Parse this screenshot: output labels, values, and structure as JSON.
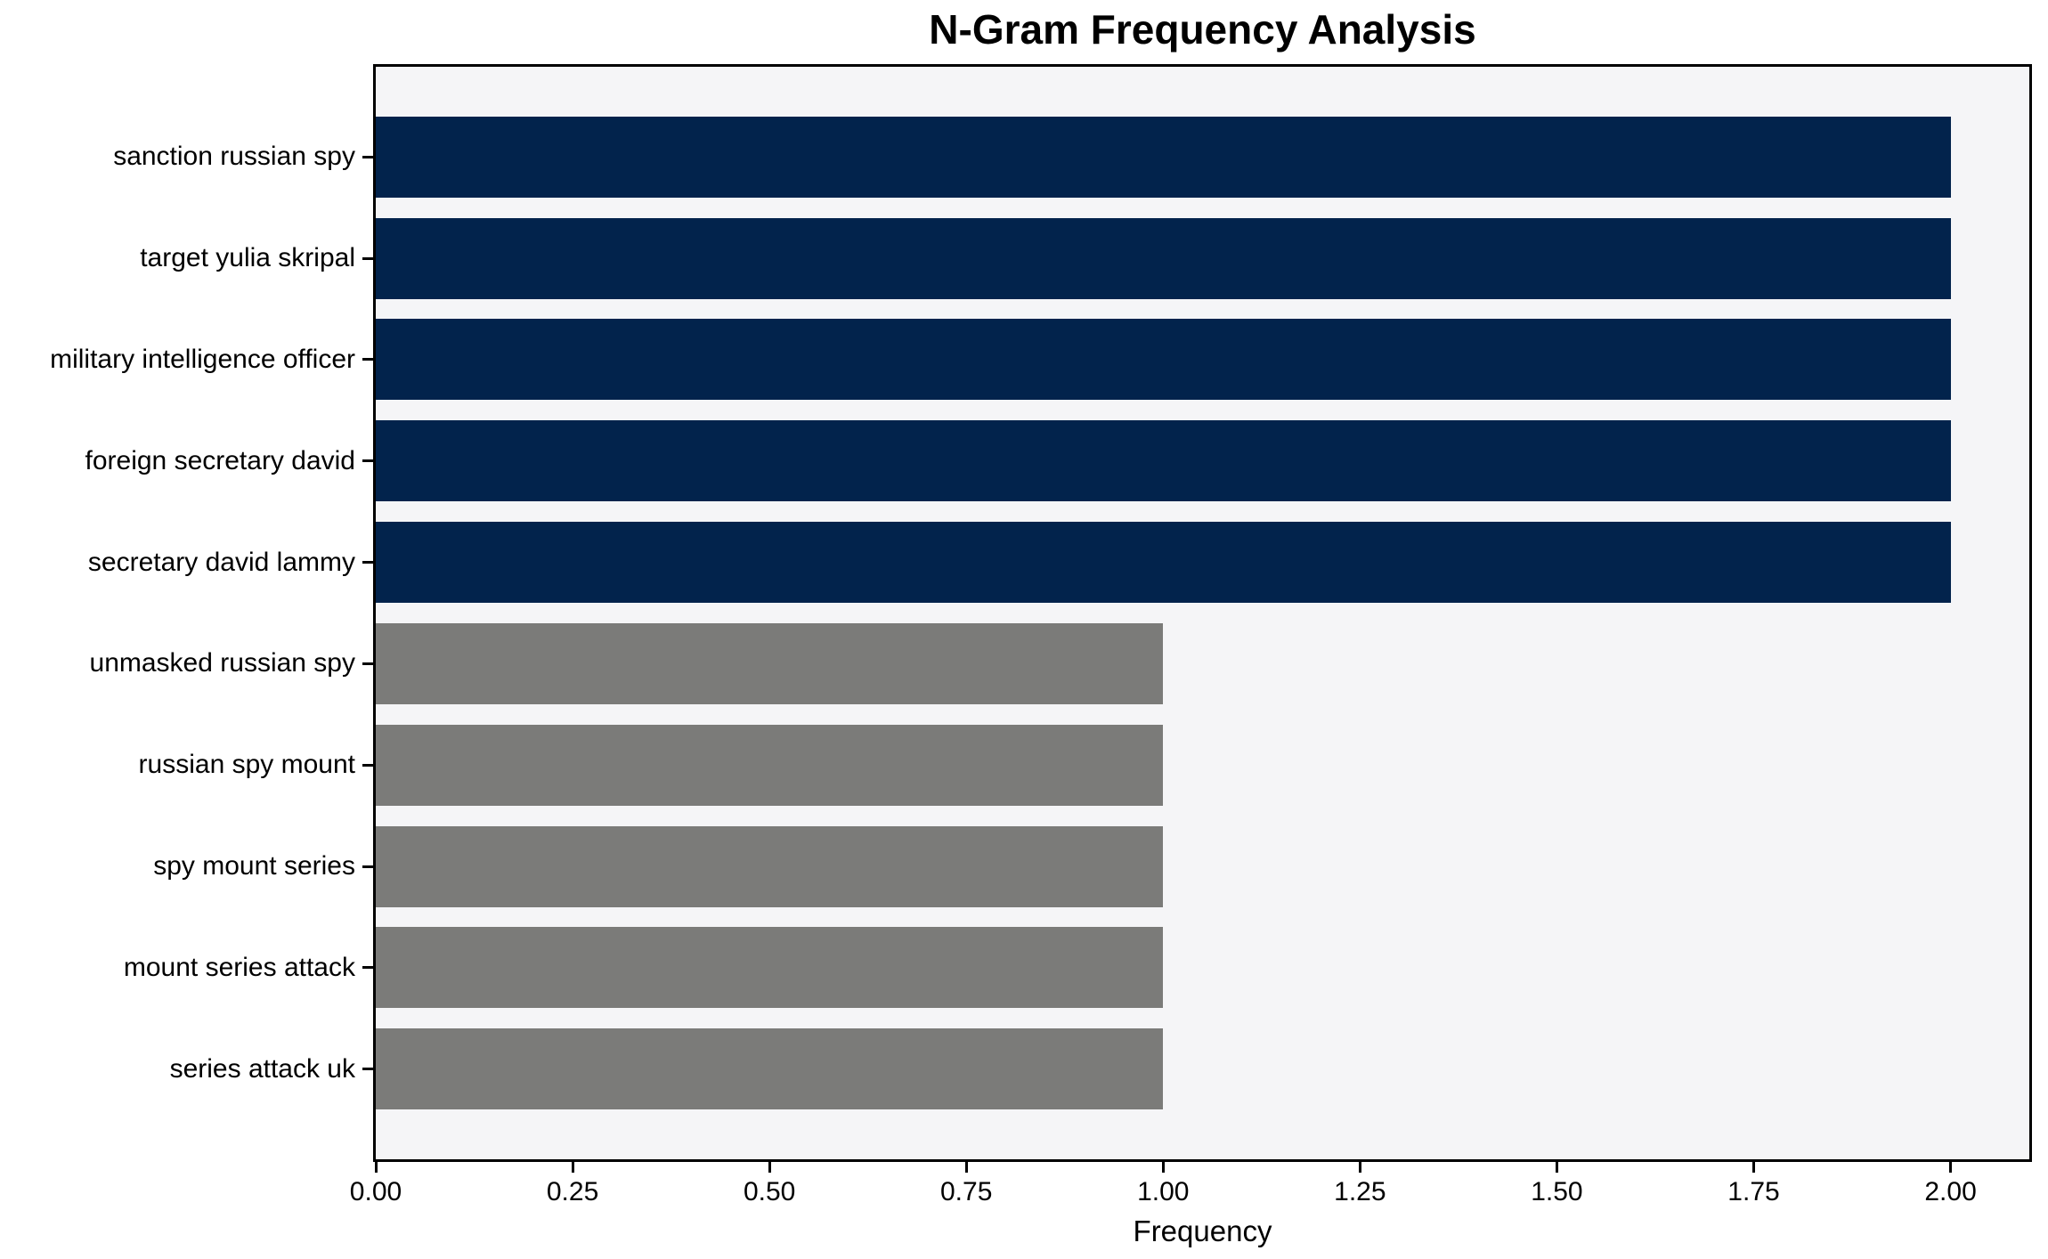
{
  "chart_data": {
    "type": "bar",
    "orientation": "horizontal",
    "title": "N-Gram Frequency Analysis",
    "xlabel": "Frequency",
    "ylabel": "",
    "categories": [
      "sanction russian spy",
      "target yulia skripal",
      "military intelligence officer",
      "foreign secretary david",
      "secretary david lammy",
      "unmasked russian spy",
      "russian spy mount",
      "spy mount series",
      "mount series attack",
      "series attack uk"
    ],
    "values": [
      2,
      2,
      2,
      2,
      2,
      1,
      1,
      1,
      1,
      1
    ],
    "bar_colors": [
      "#02234c",
      "#02234c",
      "#02234c",
      "#02234c",
      "#02234c",
      "#7b7b79",
      "#7b7b79",
      "#7b7b79",
      "#7b7b79",
      "#7b7b79"
    ],
    "xlim": [
      0,
      2.1
    ],
    "xticks": [
      {
        "value": 0.0,
        "label": "0.00"
      },
      {
        "value": 0.25,
        "label": "0.25"
      },
      {
        "value": 0.5,
        "label": "0.50"
      },
      {
        "value": 0.75,
        "label": "0.75"
      },
      {
        "value": 1.0,
        "label": "1.00"
      },
      {
        "value": 1.25,
        "label": "1.25"
      },
      {
        "value": 1.5,
        "label": "1.50"
      },
      {
        "value": 1.75,
        "label": "1.75"
      },
      {
        "value": 2.0,
        "label": "2.00"
      }
    ],
    "grid": false,
    "legend_position": "none",
    "colors": {
      "bar_primary": "#02234c",
      "bar_secondary": "#7b7b79",
      "plot_background": "#f5f5f7",
      "figure_background": "#ffffff",
      "spine": "#000000",
      "text": "#000000"
    }
  }
}
